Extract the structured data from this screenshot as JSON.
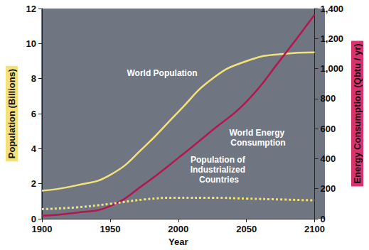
{
  "chart_data": {
    "type": "line",
    "x_label": "Year",
    "y_label": "Population (Billions)",
    "y2_label": "Energy Consumption (Qbtu / yr)",
    "xlim": [
      1900,
      2100
    ],
    "xticks": [
      1900,
      1950,
      2000,
      2050,
      2100
    ],
    "ylim": [
      0,
      12
    ],
    "yticks": [
      0,
      2,
      4,
      6,
      8,
      10,
      12
    ],
    "y2lim": [
      0,
      1400
    ],
    "y2ticks": [
      0,
      200,
      400,
      600,
      800,
      1000,
      1200,
      1400
    ],
    "grid": false,
    "x": [
      1900,
      1925,
      1950,
      1975,
      2000,
      2025,
      2050,
      2075,
      2100
    ],
    "series": [
      {
        "name": "World Population",
        "color": "#f3e27a",
        "line_style": "solid",
        "values": [
          1.6,
          1.9,
          2.5,
          4.1,
          6.1,
          8.0,
          9.0,
          9.4,
          9.5
        ]
      },
      {
        "name": "World Energy Consumption",
        "color": "#b3174e",
        "line_style": "solid",
        "axis": "y2",
        "values": [
          20,
          40,
          85,
          230,
          405,
          590,
          780,
          1060,
          1360
        ]
      },
      {
        "name": "Population of Industrialized Countries",
        "color": "#f3e27a",
        "line_style": "dotted",
        "values": [
          0.55,
          0.65,
          0.85,
          1.1,
          1.2,
          1.2,
          1.15,
          1.1,
          1.05
        ]
      }
    ]
  }
}
